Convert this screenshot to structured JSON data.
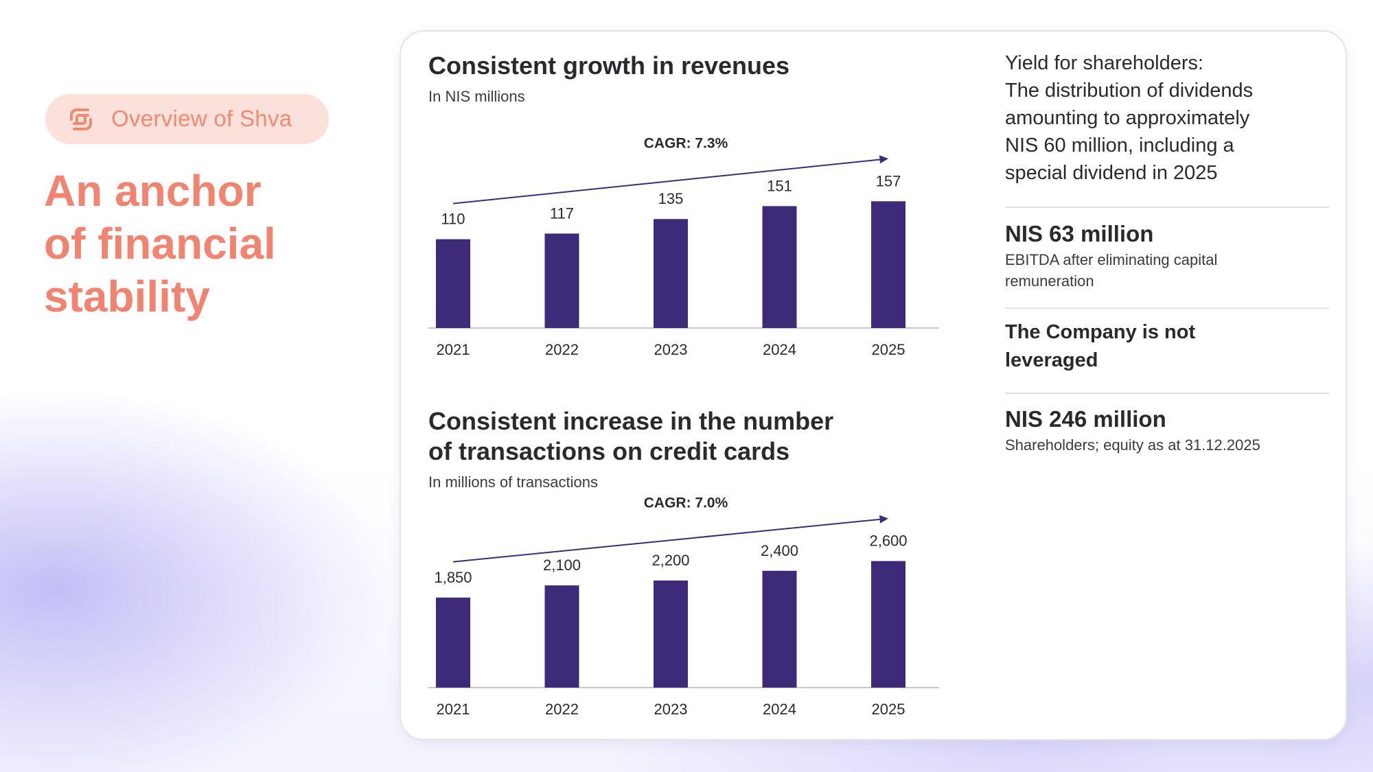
{
  "pill": {
    "label": "Overview of Shva",
    "icon": "shva-logo-icon"
  },
  "headline": {
    "lines": [
      "An anchor",
      "of financial",
      "stability"
    ]
  },
  "colors": {
    "accent": "#f08470",
    "bar": "#3d2b7a",
    "pill_bg": "#fbe1da"
  },
  "chart_data": [
    {
      "type": "bar",
      "title": "Consistent growth in revenues",
      "subtitle": "In NIS millions",
      "annotation": "CAGR: 7.3%",
      "categories": [
        "2021",
        "2022",
        "2023",
        "2024",
        "2025"
      ],
      "values": [
        110,
        117,
        135,
        151,
        157
      ],
      "value_labels": [
        "110",
        "117",
        "135",
        "151",
        "157"
      ],
      "ylim": [
        0,
        170
      ],
      "grid": false
    },
    {
      "type": "bar",
      "title_lines": [
        "Consistent increase in the number",
        "of transactions on credit cards"
      ],
      "subtitle": "In millions of transactions",
      "annotation": "CAGR: 7.0%",
      "categories": [
        "2021",
        "2022",
        "2023",
        "2024",
        "2025"
      ],
      "values": [
        1850,
        2100,
        2200,
        2400,
        2600
      ],
      "value_labels": [
        "1,850",
        "2,100",
        "2,200",
        "2,400",
        "2,600"
      ],
      "ylim": [
        0,
        2820
      ],
      "grid": false
    }
  ],
  "yield": {
    "lines": [
      "Yield for shareholders:",
      "The distribution of dividends",
      "amounting to approximately",
      "NIS 60 million, including a",
      "special dividend in 2025"
    ]
  },
  "stats": [
    {
      "title": "NIS 63 million",
      "sub": "EBITDA after eliminating capital remuneration"
    },
    {
      "title_lines": [
        "The Company is not",
        "leveraged"
      ]
    },
    {
      "title": "NIS 246 million",
      "sub": "Shareholders; equity as at 31.12.2025"
    }
  ]
}
